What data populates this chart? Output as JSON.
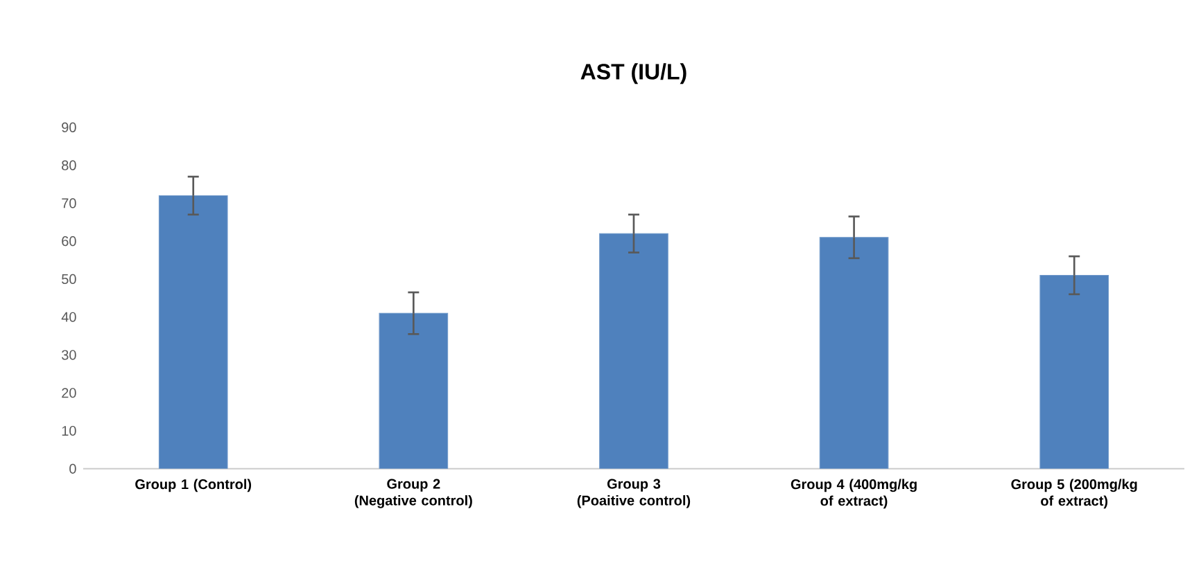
{
  "chart_data": {
    "type": "bar",
    "title": "AST (IU/L)",
    "categories": [
      "Group 1 (Control)",
      "Group 2 (Negative control)",
      "Group 3 (Poaitive control)",
      "Group 4 (400mg/kg of extract)",
      "Group 5 (200mg/kg of extract)"
    ],
    "values": [
      72,
      41,
      62,
      61,
      51
    ],
    "errors": [
      5,
      5.5,
      5,
      5.5,
      5
    ],
    "color": "#4f81bd",
    "ylim": [
      0,
      90
    ],
    "yticks": [
      0,
      10,
      20,
      30,
      40,
      50,
      60,
      70,
      80,
      90
    ],
    "marker": "none"
  }
}
